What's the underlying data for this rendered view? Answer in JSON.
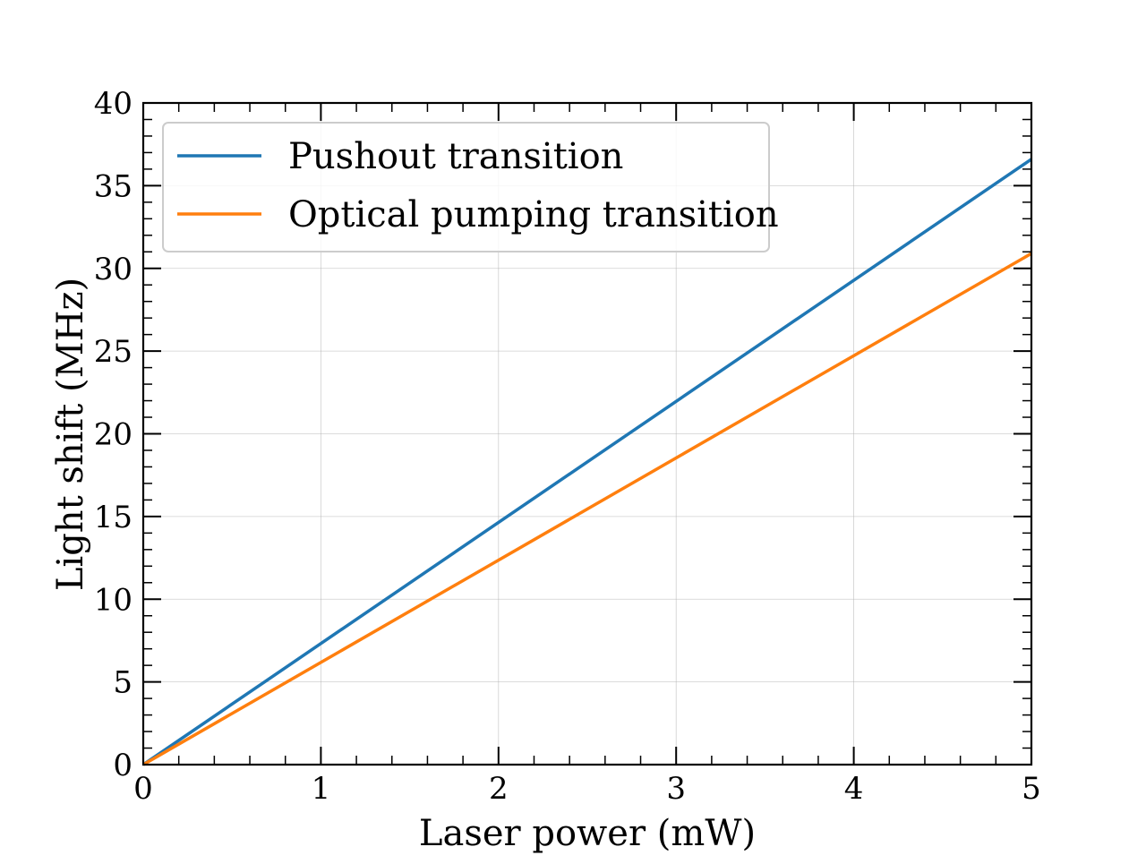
{
  "chart_data": {
    "type": "line",
    "title": "",
    "xlabel": "Laser power (mW)",
    "ylabel": "Light shift (MHz)",
    "xlim": [
      0,
      5
    ],
    "ylim": [
      0,
      40
    ],
    "x_ticks": [
      0,
      1,
      2,
      3,
      4,
      5
    ],
    "x_tick_labels": [
      "0",
      "1",
      "2",
      "3",
      "4",
      "5"
    ],
    "y_ticks": [
      0,
      5,
      10,
      15,
      20,
      25,
      30,
      35,
      40
    ],
    "y_tick_labels": [
      "0",
      "5",
      "10",
      "15",
      "20",
      "25",
      "30",
      "35",
      "40"
    ],
    "grid": true,
    "legend_position": "top-left",
    "series": [
      {
        "name": "Pushout transition",
        "color": "#1f77b4",
        "x": [
          0,
          5
        ],
        "y": [
          0,
          36.6
        ]
      },
      {
        "name": "Optical pumping transition",
        "color": "#ff7f0e",
        "x": [
          0,
          5
        ],
        "y": [
          0,
          30.9
        ]
      }
    ]
  }
}
